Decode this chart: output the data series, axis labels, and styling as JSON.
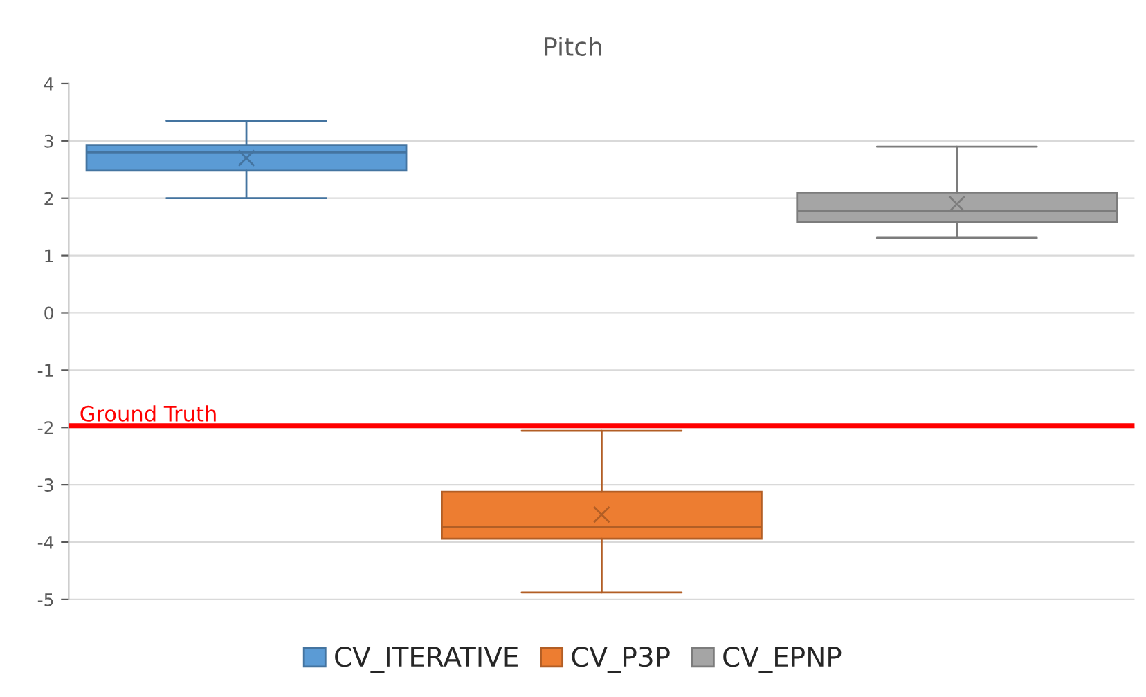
{
  "chart_data": {
    "type": "box",
    "title": "Pitch",
    "categories": [
      null,
      null,
      null
    ],
    "series": [
      {
        "name": "CV_ITERATIVE",
        "color": "#5b9bd5",
        "boxes": [
          {
            "low": 2.0,
            "q1": 2.48,
            "median": 2.8,
            "q3": 2.93,
            "high": 3.35,
            "mean": 2.7
          },
          null,
          null
        ]
      },
      {
        "name": "CV_P3P",
        "color": "#ed7d31",
        "boxes": [
          null,
          {
            "low": -4.88,
            "q1": -3.94,
            "median": -3.74,
            "q3": -3.12,
            "high": -2.06,
            "mean": -3.52
          },
          null
        ]
      },
      {
        "name": "CV_EPNP",
        "color": "#a5a5a5",
        "boxes": [
          null,
          null,
          {
            "low": 1.31,
            "q1": 1.59,
            "median": 1.78,
            "q3": 2.1,
            "high": 2.9,
            "mean": 1.9
          }
        ]
      }
    ],
    "ylim": [
      -5,
      4
    ],
    "yticks": [
      -5,
      -4,
      -3,
      -2,
      -1,
      0,
      1,
      2,
      3,
      4
    ],
    "ref_lines": [
      {
        "axis": "y",
        "value": -1.97,
        "label": "Ground Truth",
        "color": "#ff0000"
      }
    ],
    "grid": "y",
    "legend": "bottom"
  }
}
